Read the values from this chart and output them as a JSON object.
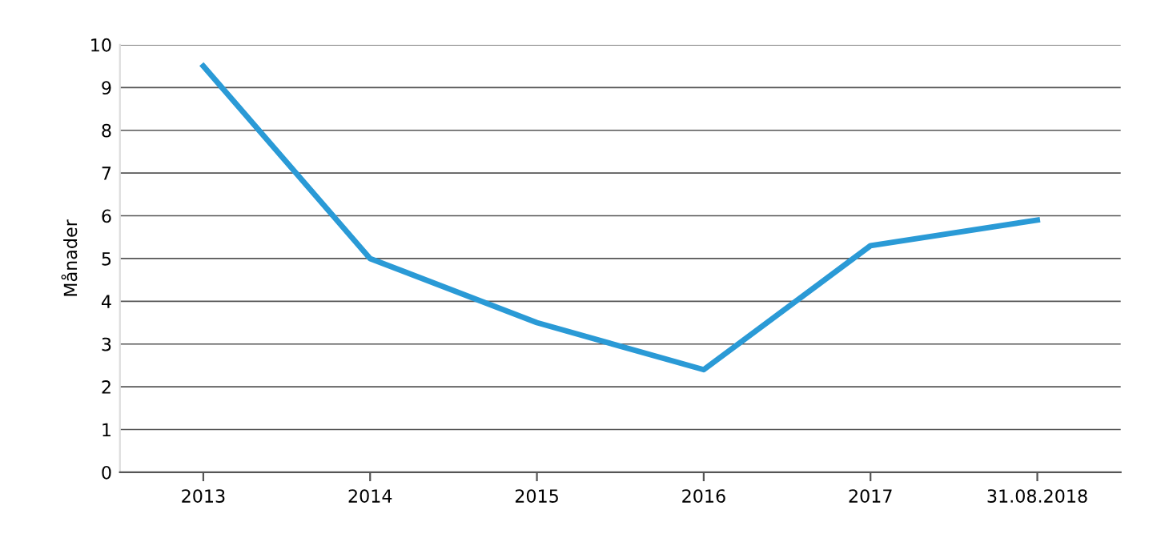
{
  "chart_data": {
    "type": "line",
    "ylabel": "Månader",
    "categories": [
      "2013",
      "2014",
      "2015",
      "2016",
      "2017",
      "31.08.2018"
    ],
    "series": [
      {
        "color": "#2a9ad6",
        "values": [
          9.5,
          5.0,
          3.5,
          2.4,
          5.3,
          5.9
        ]
      }
    ],
    "ylim": [
      0,
      10
    ],
    "yticks": [
      0,
      1,
      2,
      3,
      4,
      5,
      6,
      7,
      8,
      9,
      10
    ],
    "grid": "y",
    "marker": "none",
    "line_style": "solid"
  }
}
